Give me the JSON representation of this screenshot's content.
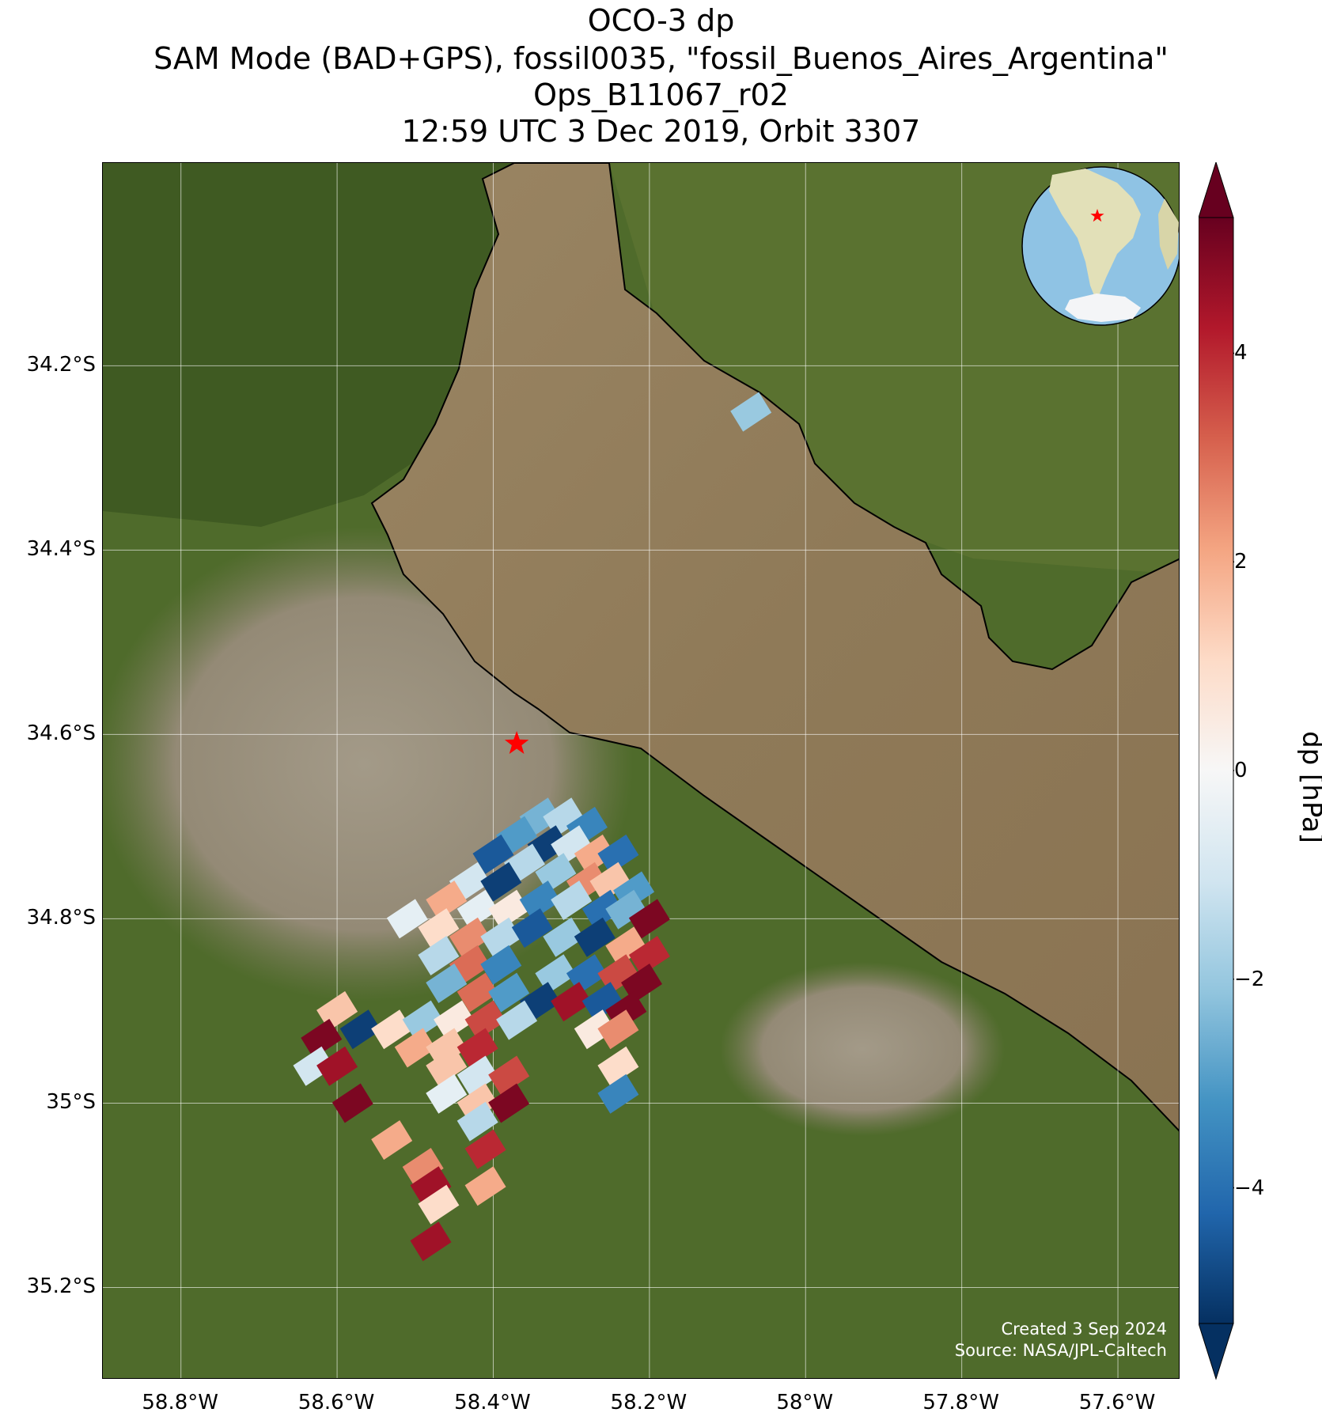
{
  "title": {
    "line1": "OCO-3 dp",
    "line2": "SAM Mode (BAD+GPS), fossil0035, \"fossil_Buenos_Aires_Argentina\"",
    "line3": "Ops_B11067_r02",
    "line4": "12:59 UTC 3 Dec 2019, Orbit 3307"
  },
  "map": {
    "lon_range": [
      -58.9,
      -57.52
    ],
    "lat_range": [
      -35.3,
      -33.98
    ],
    "lat_ticks": [
      {
        "value": -34.2,
        "label": "34.2°S"
      },
      {
        "value": -34.4,
        "label": "34.4°S"
      },
      {
        "value": -34.6,
        "label": "34.6°S"
      },
      {
        "value": -34.8,
        "label": "34.8°S"
      },
      {
        "value": -35.0,
        "label": "35°S"
      },
      {
        "value": -35.2,
        "label": "35.2°S"
      }
    ],
    "lon_ticks": [
      {
        "value": -58.8,
        "label": "58.8°W"
      },
      {
        "value": -58.6,
        "label": "58.6°W"
      },
      {
        "value": -58.4,
        "label": "58.4°W"
      },
      {
        "value": -58.2,
        "label": "58.2°W"
      },
      {
        "value": -58.0,
        "label": "58°W"
      },
      {
        "value": -57.8,
        "label": "57.8°W"
      },
      {
        "value": -57.6,
        "label": "57.6°W"
      }
    ],
    "target_marker": {
      "lon": -58.37,
      "lat": -34.61,
      "color": "#ff0000",
      "icon": "star-icon"
    },
    "colors": {
      "water": "#8f7a58",
      "land": "#4f6b2b",
      "urban": "#9a8f7c",
      "coastline": "#000000",
      "gridline": "#ffffff"
    }
  },
  "colorbar": {
    "title": "dp [hPa]",
    "range": [
      -5.3,
      5.3
    ],
    "colormap": "RdBu_r",
    "extend": "both",
    "ticks": [
      {
        "value": 4,
        "label": "4"
      },
      {
        "value": 2,
        "label": "2"
      },
      {
        "value": 0,
        "label": "0"
      },
      {
        "value": -2,
        "label": "−2"
      },
      {
        "value": -4,
        "label": "−4"
      }
    ]
  },
  "inset_globe": {
    "icon": "globe-icon",
    "marker": "star-icon",
    "marker_color": "#ff0000"
  },
  "credit": {
    "line1": "Created 3 Sep 2024",
    "line2": "Source: NASA/JPL-Caltech"
  },
  "chart_data": {
    "type": "heatmap",
    "variable": "dp",
    "units": "hPa",
    "footprints": [
      {
        "lon": -58.34,
        "lat": -34.69,
        "dp": -2.5
      },
      {
        "lon": -58.31,
        "lat": -34.69,
        "dp": -1.5
      },
      {
        "lon": -58.28,
        "lat": -34.7,
        "dp": -3.5
      },
      {
        "lon": -58.37,
        "lat": -34.71,
        "dp": -3.0
      },
      {
        "lon": -58.33,
        "lat": -34.72,
        "dp": -5.0
      },
      {
        "lon": -58.3,
        "lat": -34.72,
        "dp": -1.0
      },
      {
        "lon": -58.27,
        "lat": -34.73,
        "dp": 2.0
      },
      {
        "lon": -58.24,
        "lat": -34.73,
        "dp": -4.0
      },
      {
        "lon": -58.4,
        "lat": -34.73,
        "dp": -4.5
      },
      {
        "lon": -58.36,
        "lat": -34.74,
        "dp": -1.5
      },
      {
        "lon": -58.32,
        "lat": -34.75,
        "dp": -2.0
      },
      {
        "lon": -58.28,
        "lat": -34.76,
        "dp": 2.5
      },
      {
        "lon": -58.25,
        "lat": -34.76,
        "dp": 1.5
      },
      {
        "lon": -58.22,
        "lat": -34.77,
        "dp": -3.0
      },
      {
        "lon": -58.43,
        "lat": -34.76,
        "dp": -1.0
      },
      {
        "lon": -58.39,
        "lat": -34.76,
        "dp": -5.0
      },
      {
        "lon": -58.46,
        "lat": -34.78,
        "dp": 2.0
      },
      {
        "lon": -58.42,
        "lat": -34.79,
        "dp": -0.5
      },
      {
        "lon": -58.38,
        "lat": -34.79,
        "dp": 0.5
      },
      {
        "lon": -58.34,
        "lat": -34.78,
        "dp": -3.5
      },
      {
        "lon": -58.3,
        "lat": -34.78,
        "dp": -1.5
      },
      {
        "lon": -58.26,
        "lat": -34.79,
        "dp": -4.0
      },
      {
        "lon": -58.23,
        "lat": -34.79,
        "dp": -2.5
      },
      {
        "lon": -58.2,
        "lat": -34.8,
        "dp": 5.0
      },
      {
        "lon": -58.51,
        "lat": -34.8,
        "dp": -0.5
      },
      {
        "lon": -58.47,
        "lat": -34.81,
        "dp": 1.0
      },
      {
        "lon": -58.43,
        "lat": -34.82,
        "dp": 2.5
      },
      {
        "lon": -58.39,
        "lat": -34.82,
        "dp": -1.5
      },
      {
        "lon": -58.35,
        "lat": -34.81,
        "dp": -4.5
      },
      {
        "lon": -58.31,
        "lat": -34.82,
        "dp": -2.0
      },
      {
        "lon": -58.27,
        "lat": -34.82,
        "dp": -5.0
      },
      {
        "lon": -58.23,
        "lat": -34.83,
        "dp": 2.0
      },
      {
        "lon": -58.2,
        "lat": -34.84,
        "dp": 4.0
      },
      {
        "lon": -58.47,
        "lat": -34.84,
        "dp": -1.5
      },
      {
        "lon": -58.43,
        "lat": -34.85,
        "dp": 3.0
      },
      {
        "lon": -58.39,
        "lat": -34.85,
        "dp": -3.5
      },
      {
        "lon": -58.32,
        "lat": -34.86,
        "dp": -2.0
      },
      {
        "lon": -58.28,
        "lat": -34.86,
        "dp": -4.0
      },
      {
        "lon": -58.24,
        "lat": -34.86,
        "dp": 3.5
      },
      {
        "lon": -58.21,
        "lat": -34.87,
        "dp": 5.0
      },
      {
        "lon": -58.46,
        "lat": -34.87,
        "dp": -2.5
      },
      {
        "lon": -58.42,
        "lat": -34.88,
        "dp": 3.0
      },
      {
        "lon": -58.38,
        "lat": -34.88,
        "dp": -3.0
      },
      {
        "lon": -58.34,
        "lat": -34.89,
        "dp": -5.0
      },
      {
        "lon": -58.3,
        "lat": -34.89,
        "dp": 4.5
      },
      {
        "lon": -58.26,
        "lat": -34.89,
        "dp": -4.5
      },
      {
        "lon": -58.23,
        "lat": -34.9,
        "dp": 5.0
      },
      {
        "lon": -58.6,
        "lat": -34.9,
        "dp": 1.5
      },
      {
        "lon": -58.57,
        "lat": -34.92,
        "dp": -5.0
      },
      {
        "lon": -58.53,
        "lat": -34.92,
        "dp": 1.0
      },
      {
        "lon": -58.49,
        "lat": -34.91,
        "dp": -2.0
      },
      {
        "lon": -58.45,
        "lat": -34.91,
        "dp": 0.5
      },
      {
        "lon": -58.41,
        "lat": -34.91,
        "dp": 3.5
      },
      {
        "lon": -58.37,
        "lat": -34.91,
        "dp": -1.5
      },
      {
        "lon": -58.27,
        "lat": -34.92,
        "dp": 0.5
      },
      {
        "lon": -58.24,
        "lat": -34.92,
        "dp": 2.5
      },
      {
        "lon": -58.62,
        "lat": -34.93,
        "dp": 5.0
      },
      {
        "lon": -58.5,
        "lat": -34.94,
        "dp": 2.0
      },
      {
        "lon": -58.46,
        "lat": -34.94,
        "dp": 1.5
      },
      {
        "lon": -58.42,
        "lat": -34.94,
        "dp": 4.0
      },
      {
        "lon": -58.63,
        "lat": -34.96,
        "dp": -1.0
      },
      {
        "lon": -58.6,
        "lat": -34.96,
        "dp": 4.5
      },
      {
        "lon": -58.46,
        "lat": -34.96,
        "dp": 1.5
      },
      {
        "lon": -58.42,
        "lat": -34.97,
        "dp": -1.0
      },
      {
        "lon": -58.38,
        "lat": -34.97,
        "dp": 3.5
      },
      {
        "lon": -58.24,
        "lat": -34.96,
        "dp": 1.0
      },
      {
        "lon": -58.24,
        "lat": -34.99,
        "dp": -3.5
      },
      {
        "lon": -58.46,
        "lat": -34.99,
        "dp": -0.5
      },
      {
        "lon": -58.42,
        "lat": -35.0,
        "dp": 1.5
      },
      {
        "lon": -58.38,
        "lat": -35.0,
        "dp": 5.0
      },
      {
        "lon": -58.58,
        "lat": -35.0,
        "dp": 5.0
      },
      {
        "lon": -58.42,
        "lat": -35.02,
        "dp": -1.5
      },
      {
        "lon": -58.53,
        "lat": -35.04,
        "dp": 2.0
      },
      {
        "lon": -58.41,
        "lat": -35.05,
        "dp": 4.0
      },
      {
        "lon": -58.49,
        "lat": -35.07,
        "dp": 2.5
      },
      {
        "lon": -58.48,
        "lat": -35.09,
        "dp": 4.5
      },
      {
        "lon": -58.41,
        "lat": -35.09,
        "dp": 2.0
      },
      {
        "lon": -58.47,
        "lat": -35.11,
        "dp": 1.0
      },
      {
        "lon": -58.48,
        "lat": -35.15,
        "dp": 4.5
      },
      {
        "lon": -58.07,
        "lat": -34.25,
        "dp": -2.0
      }
    ]
  }
}
